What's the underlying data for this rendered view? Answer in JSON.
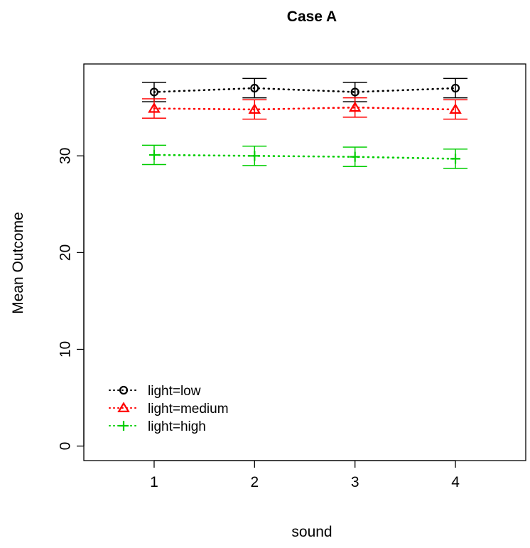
{
  "chart_data": {
    "type": "line",
    "title": "Case A",
    "xlabel": "sound",
    "ylabel": "Mean Outcome",
    "x": [
      1,
      2,
      3,
      4
    ],
    "x_ticks": [
      "1",
      "2",
      "3",
      "4"
    ],
    "y_ticks": [
      "0",
      "10",
      "20",
      "30"
    ],
    "xlim": [
      0.3,
      4.7
    ],
    "ylim": [
      -1.5,
      39.5
    ],
    "grid": false,
    "legend_position": "bottom-left",
    "series": [
      {
        "name": "light=low",
        "color": "#000000",
        "marker": "circle",
        "mean": [
          36.6,
          37.0,
          36.6,
          37.0
        ],
        "lower": [
          35.6,
          36.0,
          35.6,
          36.0
        ],
        "upper": [
          37.6,
          38.0,
          37.6,
          38.0
        ]
      },
      {
        "name": "light=medium",
        "color": "#ff0000",
        "marker": "triangle",
        "mean": [
          34.9,
          34.8,
          35.0,
          34.8
        ],
        "lower": [
          33.9,
          33.8,
          34.0,
          33.8
        ],
        "upper": [
          35.9,
          35.8,
          36.0,
          35.8
        ]
      },
      {
        "name": "light=high",
        "color": "#00cd00",
        "marker": "plus",
        "mean": [
          30.1,
          30.0,
          29.9,
          29.7
        ],
        "lower": [
          29.1,
          29.0,
          28.9,
          28.7
        ],
        "upper": [
          31.1,
          31.0,
          30.9,
          30.7
        ]
      }
    ]
  }
}
